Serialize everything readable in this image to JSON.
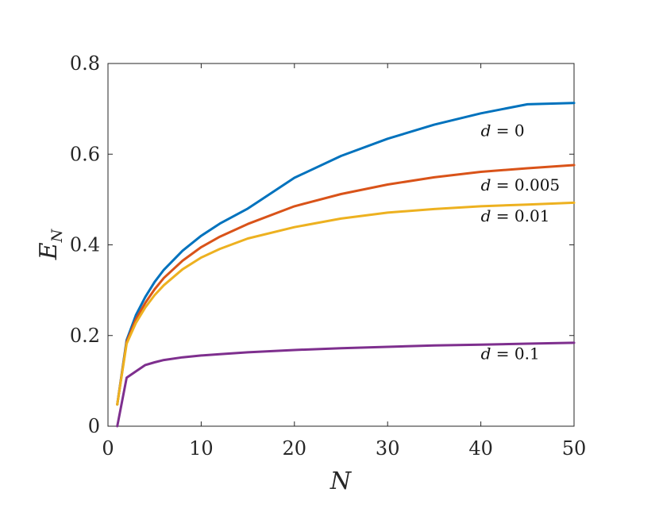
{
  "chart_data": {
    "type": "line",
    "xlabel": "N",
    "ylabel": "E",
    "ylabel_subscript": "N",
    "xlim": [
      0,
      50
    ],
    "ylim": [
      0,
      0.8
    ],
    "xticks": [
      0,
      10,
      20,
      30,
      40,
      50
    ],
    "yticks": [
      0,
      0.2,
      0.4,
      0.6,
      0.8
    ],
    "xtick_labels": [
      "0",
      "10",
      "20",
      "30",
      "40",
      "50"
    ],
    "ytick_labels": [
      "0",
      "0.2",
      "0.4",
      "0.6",
      "0.8"
    ],
    "grid": false,
    "x": [
      1,
      2,
      3,
      4,
      5,
      6,
      8,
      10,
      12,
      15,
      20,
      25,
      30,
      35,
      40,
      45,
      50
    ],
    "series": [
      {
        "color": "#0072BD",
        "values": [
          0.048,
          0.19,
          0.245,
          0.285,
          0.318,
          0.345,
          0.387,
          0.42,
          0.447,
          0.48,
          0.548,
          0.596,
          0.634,
          0.665,
          0.69,
          0.71,
          0.713
        ]
      },
      {
        "color": "#D95319",
        "values": [
          0.048,
          0.186,
          0.236,
          0.272,
          0.302,
          0.327,
          0.365,
          0.395,
          0.418,
          0.446,
          0.485,
          0.512,
          0.533,
          0.549,
          0.561,
          0.569,
          0.576
        ]
      },
      {
        "color": "#EDB120",
        "values": [
          0.048,
          0.182,
          0.228,
          0.262,
          0.289,
          0.311,
          0.346,
          0.372,
          0.391,
          0.414,
          0.439,
          0.458,
          0.471,
          0.479,
          0.485,
          0.489,
          0.493
        ]
      },
      {
        "color": "#7E2F8E",
        "values": [
          0.0,
          0.107,
          0.121,
          0.135,
          0.141,
          0.146,
          0.152,
          0.156,
          0.159,
          0.163,
          0.168,
          0.172,
          0.175,
          0.178,
          0.18,
          0.182,
          0.184
        ]
      }
    ],
    "annotations": [
      {
        "var": "d",
        "eq": " = ",
        "value": "0",
        "x": 40,
        "y": 0.64
      },
      {
        "var": "d",
        "eq": " = ",
        "value": "0.005",
        "x": 40,
        "y": 0.52
      },
      {
        "var": "d",
        "eq": " = ",
        "value": "0.01",
        "x": 40,
        "y": 0.452
      },
      {
        "var": "d",
        "eq": " = ",
        "value": "0.1",
        "x": 40,
        "y": 0.148
      }
    ]
  }
}
